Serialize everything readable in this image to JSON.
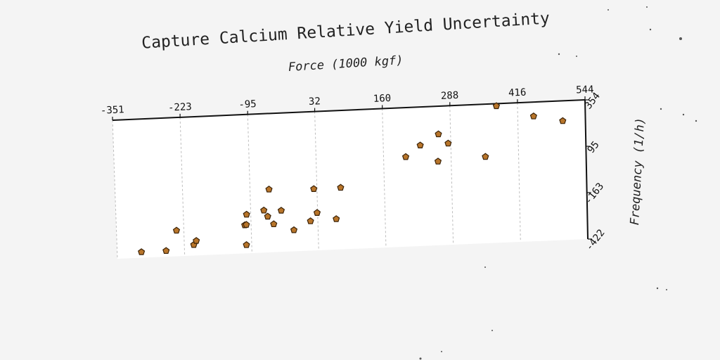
{
  "chart_data": {
    "type": "scatter",
    "title": "Capture Calcium Relative Yield Uncertainty",
    "xlabel": "Force (1000 kgf)",
    "ylabel": "Frequency (1/h)",
    "x_ticks": [
      -351,
      -223,
      -95,
      32,
      160,
      288,
      416,
      544
    ],
    "y_ticks": [
      354,
      95,
      -163,
      -422
    ],
    "xlim": [
      -351,
      544
    ],
    "ylim": [
      -422,
      354
    ],
    "x_axis_position": "top",
    "y_axis_position": "right",
    "grid": true,
    "marker": "pentagon",
    "marker_color": "#b8752a",
    "points": [
      {
        "x": -305,
        "y": -390
      },
      {
        "x": -258,
        "y": -389
      },
      {
        "x": -237,
        "y": -278
      },
      {
        "x": -205,
        "y": -362
      },
      {
        "x": -200,
        "y": -340
      },
      {
        "x": -105,
        "y": -375
      },
      {
        "x": -107,
        "y": -264
      },
      {
        "x": -104,
        "y": -262
      },
      {
        "x": -103,
        "y": -205
      },
      {
        "x": -70,
        "y": -186
      },
      {
        "x": -63,
        "y": -221
      },
      {
        "x": -59,
        "y": -70
      },
      {
        "x": -52,
        "y": -265
      },
      {
        "x": -37,
        "y": -191
      },
      {
        "x": -14,
        "y": -303
      },
      {
        "x": 18,
        "y": -257
      },
      {
        "x": 26,
        "y": -78
      },
      {
        "x": 31,
        "y": -212
      },
      {
        "x": 67,
        "y": -251
      },
      {
        "x": 77,
        "y": -77
      },
      {
        "x": 202,
        "y": 79
      },
      {
        "x": 230,
        "y": 140
      },
      {
        "x": 263,
        "y": 46
      },
      {
        "x": 265,
        "y": 198
      },
      {
        "x": 283,
        "y": 144
      },
      {
        "x": 353,
        "y": 61
      },
      {
        "x": 376,
        "y": 341
      },
      {
        "x": 446,
        "y": 275
      },
      {
        "x": 501,
        "y": 242
      }
    ]
  }
}
